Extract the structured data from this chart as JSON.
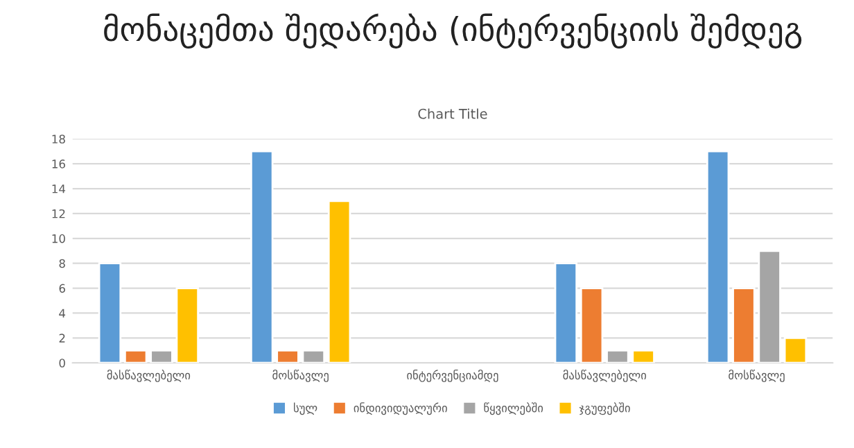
{
  "chart_data": {
    "type": "bar",
    "title": "მონაცემთა შედარება (ინტერვენციის შემდეგ",
    "subtitle": "Chart Title",
    "categories": [
      "მასწავლებელი",
      "მოსწავლე",
      "ინტერვენციამდე",
      "მასწავლებელი",
      "მოსწავლე"
    ],
    "series": [
      {
        "name": "სულ",
        "color": "#5b9bd5",
        "values": [
          8,
          17,
          null,
          8,
          17
        ]
      },
      {
        "name": "ინდივიდუალური",
        "color": "#ed7d31",
        "values": [
          1,
          1,
          null,
          6,
          6
        ]
      },
      {
        "name": "წყვილებში",
        "color": "#a5a5a5",
        "values": [
          1,
          1,
          null,
          1,
          9
        ]
      },
      {
        "name": "ჯგუფებში",
        "color": "#ffc000",
        "values": [
          6,
          13,
          null,
          1,
          2
        ]
      }
    ],
    "ylim": [
      0,
      18
    ],
    "yticks": [
      0,
      2,
      4,
      6,
      8,
      10,
      12,
      14,
      16,
      18
    ],
    "grid": "y",
    "legend": "bottom"
  }
}
